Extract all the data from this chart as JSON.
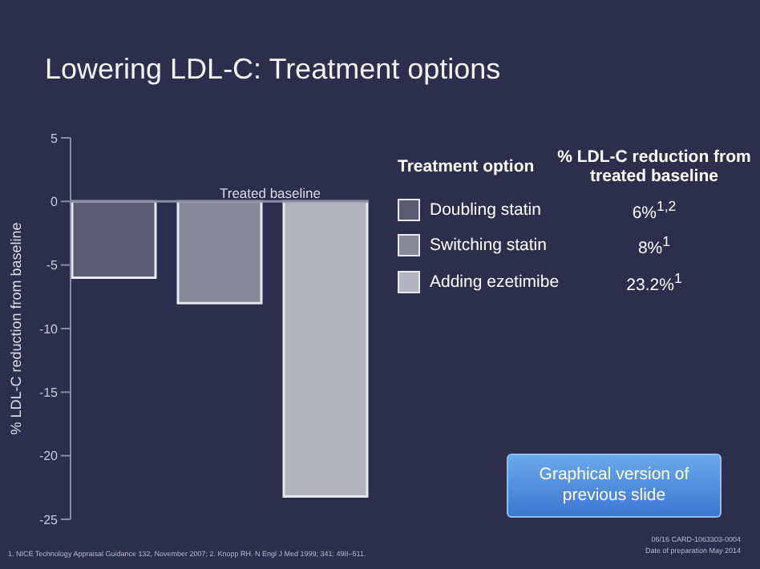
{
  "chart_data": {
    "type": "bar",
    "title": "Lowering LDL-C: Treatment options",
    "ylabel": "% LDL-C reduction from baseline",
    "legend_title": "Treatment option",
    "categories": [
      null
    ],
    "series": [
      {
        "name": "Doubling statin",
        "color": "#5b5c72",
        "values": [
          -6
        ]
      },
      {
        "name": "Switching statin",
        "color": "#878899",
        "values": [
          -8
        ]
      },
      {
        "name": "Adding ezetimibe",
        "color": "#b3b4bf",
        "values": [
          -23.2
        ]
      }
    ],
    "ylim": [
      -25,
      5
    ],
    "yticks": [
      -25,
      -20,
      -15,
      -10,
      -5,
      0,
      5
    ],
    "legend": "right",
    "ref_lines": [
      {
        "axis": "y",
        "value": 0,
        "label": "Treated baseline",
        "color": "#8a8ca0"
      }
    ],
    "annotations": [
      "% LDL-C reduction from treated baseline",
      "6%$^{1,2}$",
      "8%$^{1}$",
      "23.2%$^{1}$",
      "Graphical version of previous slide",
      "1. NICE Technology Appraisal Guidance 132, November 2007; 2. Knopp RH. N Engl J Med 1999; 341: 498–511.",
      "06/16 CARD-1063303-0004",
      "Date of preparation May 2014"
    ]
  }
}
